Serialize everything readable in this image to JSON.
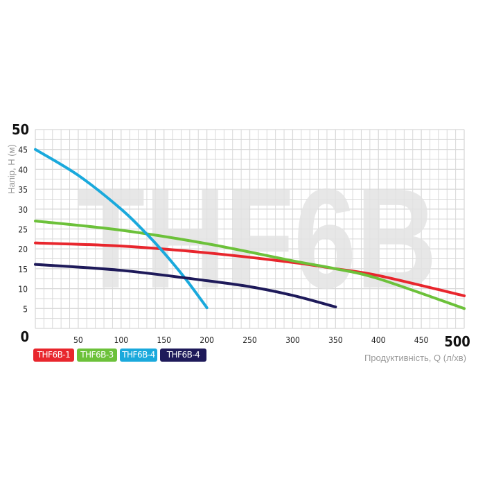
{
  "chart_data": {
    "type": "line",
    "watermark": "THF6B",
    "xlabel": "Продуктивність, Q (л/хв)",
    "ylabel": "Напір, H (м)",
    "xlim": [
      0,
      500
    ],
    "ylim": [
      0,
      50
    ],
    "xticks": [
      0,
      50,
      100,
      150,
      200,
      250,
      300,
      350,
      400,
      450,
      500
    ],
    "yticks": [
      0,
      5,
      10,
      15,
      20,
      25,
      30,
      35,
      40,
      45,
      50
    ],
    "grid": true,
    "legend_position": "bottom-left",
    "series": [
      {
        "name": "THF6B-1",
        "color": "#e8262d",
        "x": [
          0,
          100,
          200,
          300,
          350,
          400,
          500
        ],
        "y": [
          21.5,
          20.7,
          19,
          16.6,
          15,
          13.3,
          8.2
        ]
      },
      {
        "name": "THF6B-3",
        "color": "#6cc13a",
        "x": [
          0,
          100,
          200,
          300,
          350,
          400,
          500
        ],
        "y": [
          27,
          24.7,
          21.3,
          17,
          15,
          12.5,
          5
        ]
      },
      {
        "name": "THF6B-4",
        "color": "#1aa9dc",
        "x": [
          0,
          50,
          100,
          130,
          150,
          175,
          200
        ],
        "y": [
          45,
          38.5,
          30,
          23.7,
          19,
          12.5,
          5.2
        ]
      },
      {
        "name": "THF6B-4",
        "color": "#1e1a5a",
        "x": [
          0,
          100,
          200,
          250,
          300,
          350
        ],
        "y": [
          16.1,
          14.6,
          12,
          10.5,
          8.3,
          5.4
        ]
      }
    ]
  }
}
